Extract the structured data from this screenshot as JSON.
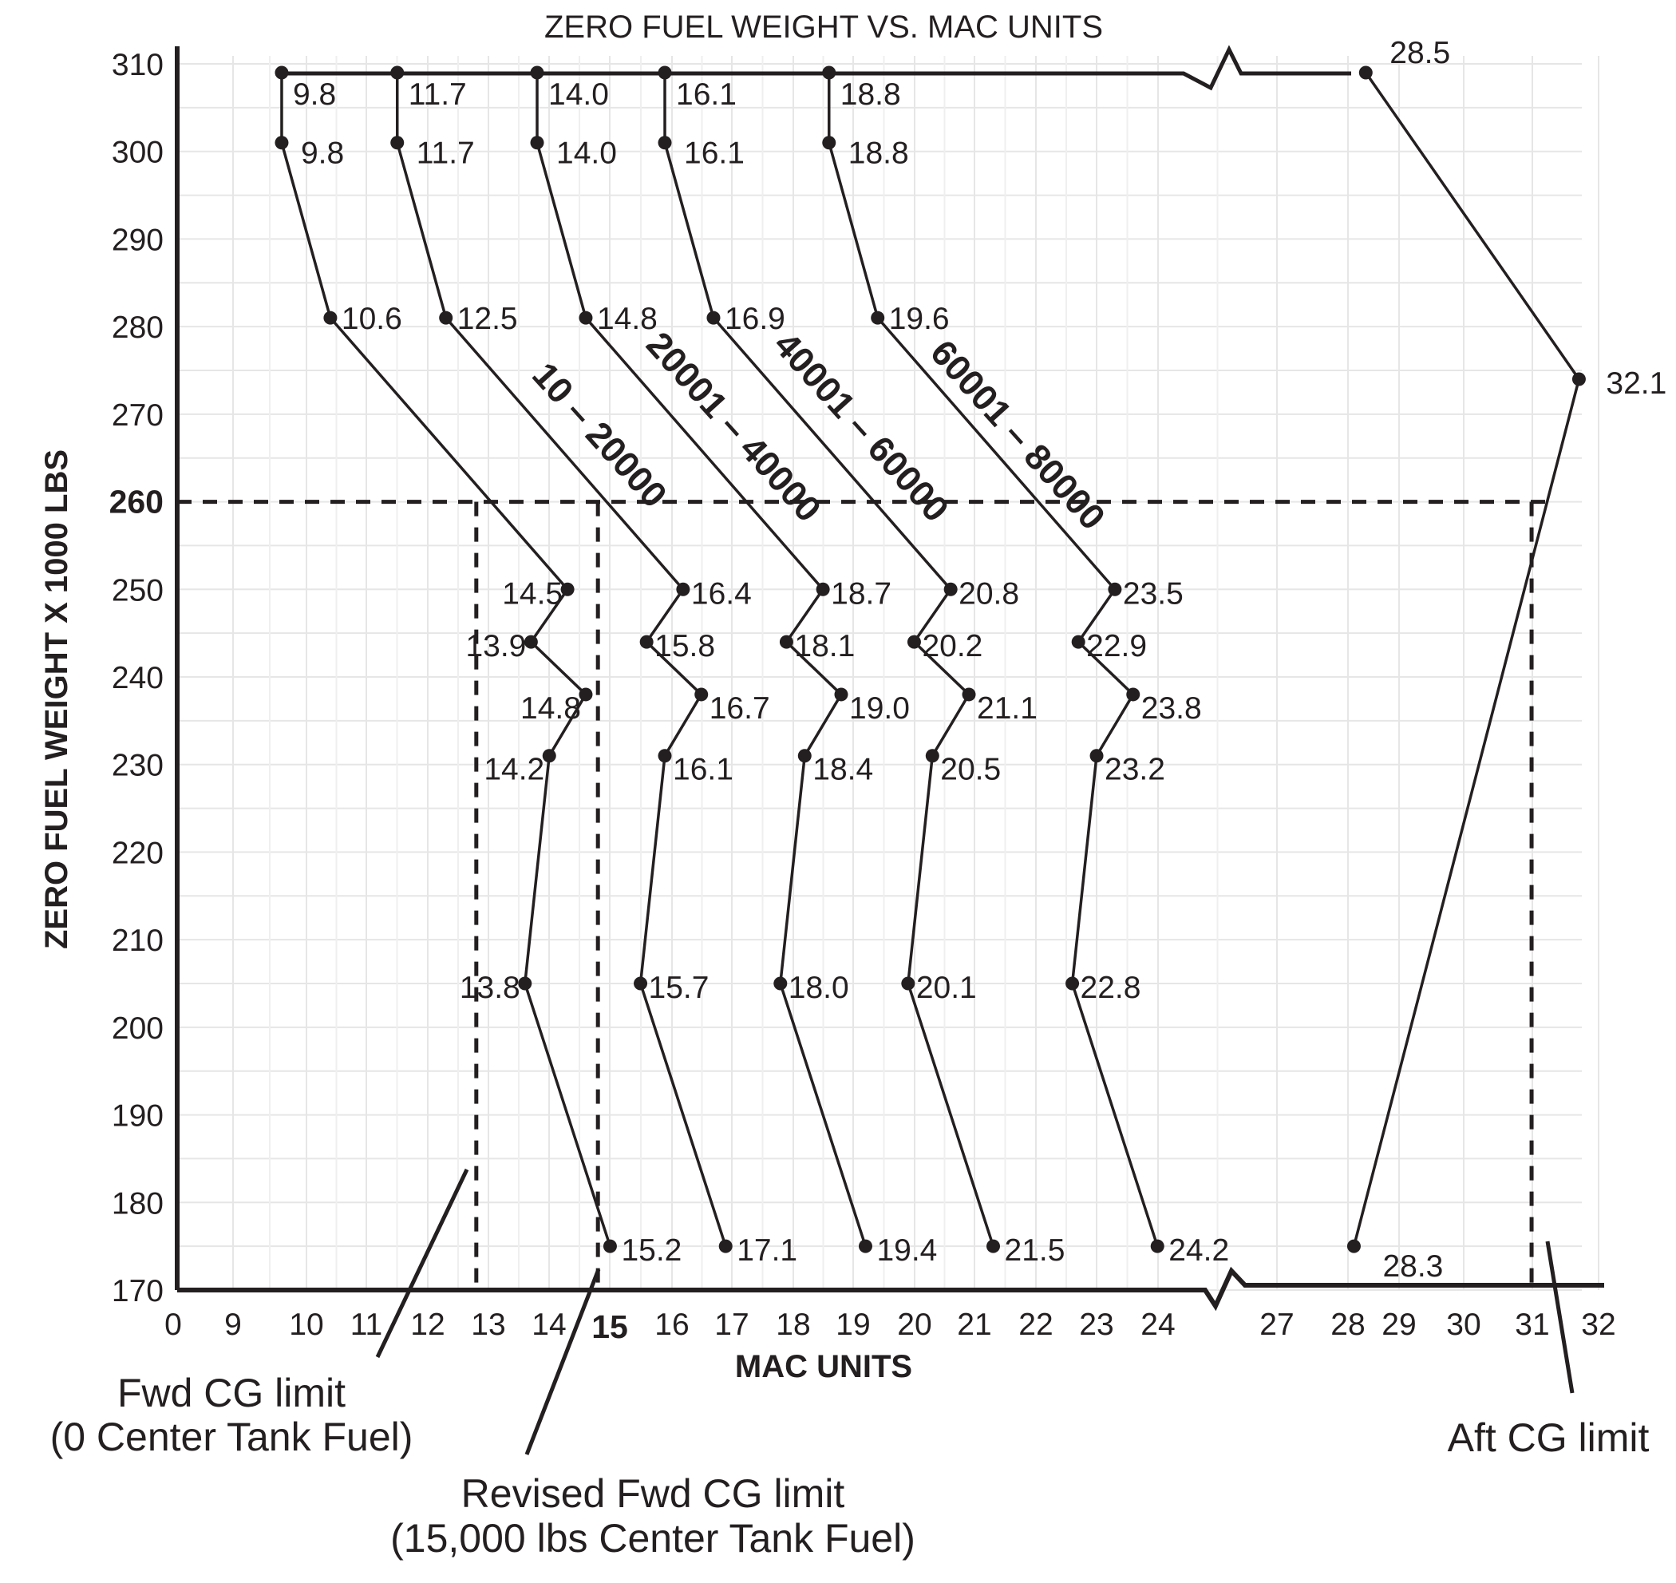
{
  "chart_data": {
    "type": "line",
    "title": "ZERO FUEL WEIGHT VS. MAC UNITS",
    "xlabel": "MAC UNITS",
    "ylabel": "ZERO FUEL WEIGHT X 1000 LBS",
    "x_axis_break": "between 24 and 27",
    "grid": true,
    "x_ticks": [
      "0",
      "9",
      "10",
      "11",
      "12",
      "13",
      "14",
      "15",
      "16",
      "17",
      "18",
      "19",
      "20",
      "21",
      "22",
      "23",
      "24",
      "27",
      "28",
      "29",
      "30",
      "31",
      "32"
    ],
    "y_ticks": [
      "310",
      "300",
      "290",
      "280",
      "270",
      "260",
      "250",
      "240",
      "230",
      "220",
      "210",
      "200",
      "190",
      "180",
      "170"
    ],
    "highlight_x_tick": "15",
    "highlight_y_tick": "260",
    "ylim": [
      170,
      310
    ],
    "series": [
      {
        "name": "10 - 20000",
        "points": [
          {
            "x": 9.8,
            "y": 309,
            "label": "9.8"
          },
          {
            "x": 9.8,
            "y": 301,
            "label": "9.8"
          },
          {
            "x": 10.6,
            "y": 281,
            "label": "10.6"
          },
          {
            "x": 14.5,
            "y": 250,
            "label": "14.5"
          },
          {
            "x": 13.9,
            "y": 244,
            "label": "13.9"
          },
          {
            "x": 14.8,
            "y": 238,
            "label": "14.8"
          },
          {
            "x": 14.2,
            "y": 231,
            "label": "14.2"
          },
          {
            "x": 13.8,
            "y": 205,
            "label": "13.8"
          },
          {
            "x": 15.2,
            "y": 175,
            "label": "15.2"
          }
        ]
      },
      {
        "name": "20001 - 40000",
        "points": [
          {
            "x": 11.7,
            "y": 309,
            "label": "11.7"
          },
          {
            "x": 11.7,
            "y": 301,
            "label": "11.7"
          },
          {
            "x": 12.5,
            "y": 281,
            "label": "12.5"
          },
          {
            "x": 16.4,
            "y": 250,
            "label": "16.4"
          },
          {
            "x": 15.8,
            "y": 244,
            "label": "15.8"
          },
          {
            "x": 16.7,
            "y": 238,
            "label": "16.7"
          },
          {
            "x": 16.1,
            "y": 231,
            "label": "16.1"
          },
          {
            "x": 15.7,
            "y": 205,
            "label": "15.7"
          },
          {
            "x": 17.1,
            "y": 175,
            "label": "17.1"
          }
        ]
      },
      {
        "name": "40001 - 60000",
        "points": [
          {
            "x": 14.0,
            "y": 309,
            "label": "14.0"
          },
          {
            "x": 14.0,
            "y": 301,
            "label": "14.0"
          },
          {
            "x": 14.8,
            "y": 281,
            "label": "14.8"
          },
          {
            "x": 18.7,
            "y": 250,
            "label": "18.7"
          },
          {
            "x": 18.1,
            "y": 244,
            "label": "18.1"
          },
          {
            "x": 19.0,
            "y": 238,
            "label": "19.0"
          },
          {
            "x": 18.4,
            "y": 231,
            "label": "18.4"
          },
          {
            "x": 18.0,
            "y": 205,
            "label": "18.0"
          },
          {
            "x": 19.4,
            "y": 175,
            "label": "19.4"
          }
        ]
      },
      {
        "name": "60001 - 80000",
        "points": [
          {
            "x": 16.1,
            "y": 309,
            "label": "16.1"
          },
          {
            "x": 16.1,
            "y": 301,
            "label": "16.1"
          },
          {
            "x": 16.9,
            "y": 281,
            "label": "16.9"
          },
          {
            "x": 20.8,
            "y": 250,
            "label": "20.8"
          },
          {
            "x": 20.2,
            "y": 244,
            "label": "20.2"
          },
          {
            "x": 21.1,
            "y": 238,
            "label": "21.1"
          },
          {
            "x": 20.5,
            "y": 231,
            "label": "20.5"
          },
          {
            "x": 20.1,
            "y": 205,
            "label": "20.1"
          },
          {
            "x": 21.5,
            "y": 175,
            "label": "21.5"
          }
        ]
      },
      {
        "points": [
          {
            "x": 18.8,
            "y": 309,
            "label": "18.8"
          },
          {
            "x": 18.8,
            "y": 301,
            "label": "18.8"
          },
          {
            "x": 19.6,
            "y": 281,
            "label": "19.6"
          },
          {
            "x": 23.5,
            "y": 250,
            "label": "23.5"
          },
          {
            "x": 22.9,
            "y": 244,
            "label": "22.9"
          },
          {
            "x": 23.8,
            "y": 238,
            "label": "23.8"
          },
          {
            "x": 23.2,
            "y": 231,
            "label": "23.2"
          },
          {
            "x": 22.8,
            "y": 205,
            "label": "22.8"
          },
          {
            "x": 24.2,
            "y": 175,
            "label": "24.2"
          }
        ]
      },
      {
        "points": [
          {
            "x": 28.5,
            "y": 309,
            "label": "28.5"
          },
          {
            "x": 32.1,
            "y": 274,
            "label": "32.1"
          },
          {
            "x": 28.3,
            "y": 175,
            "label": "28.3"
          }
        ]
      }
    ],
    "band_labels": [
      "10 – 20000",
      "20001 – 40000",
      "40001 – 60000",
      "60001 – 80000"
    ],
    "reference_lines": [
      {
        "type": "horizontal",
        "y": 260,
        "style": "dashed"
      },
      {
        "type": "vertical",
        "x": 13,
        "style": "dashed"
      },
      {
        "type": "vertical",
        "x": 15,
        "style": "dashed"
      },
      {
        "type": "vertical",
        "x": 31.3,
        "style": "dashed"
      }
    ],
    "annotations": [
      {
        "lines": [
          "Fwd CG limit",
          "(0 Center Tank Fuel)"
        ]
      },
      {
        "lines": [
          "Revised Fwd CG limit",
          "(15,000 lbs Center Tank Fuel)"
        ]
      },
      {
        "lines": [
          "Aft CG limit"
        ]
      }
    ]
  }
}
